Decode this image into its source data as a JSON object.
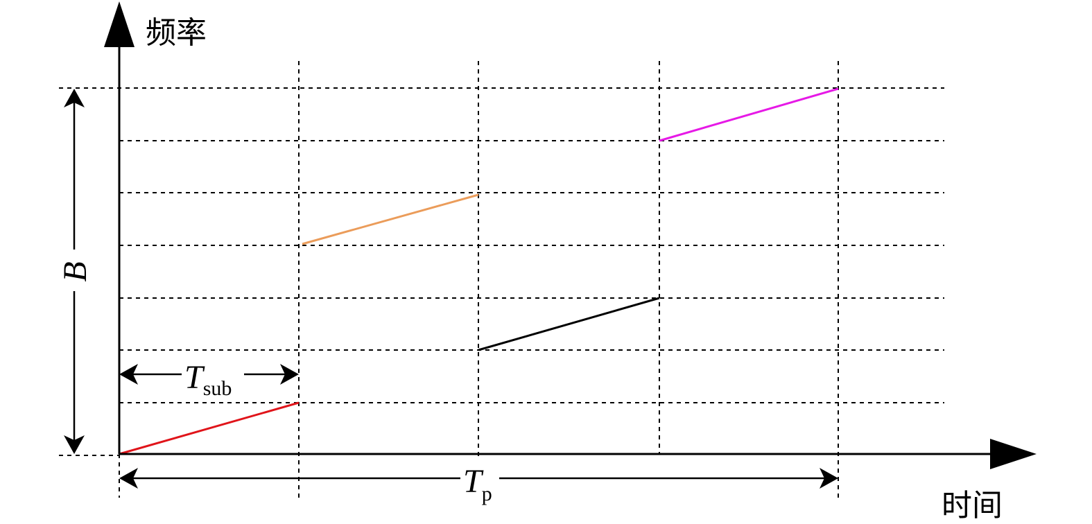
{
  "axes": {
    "y_label": "频率",
    "x_label": "时间"
  },
  "annotations": {
    "bandwidth": "B",
    "sub_period": {
      "symbol": "T",
      "subscript": "sub"
    },
    "period": {
      "symbol": "T",
      "subscript": "p"
    }
  }
}
